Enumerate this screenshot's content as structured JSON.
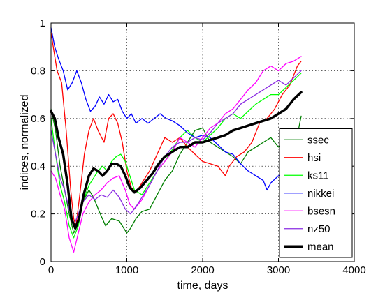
{
  "chart_data": {
    "type": "line",
    "xlabel": "time, days",
    "ylabel": "indices, normalized",
    "xlim": [
      0,
      4000
    ],
    "ylim": [
      0,
      1
    ],
    "x_ticks": [
      "0",
      "1000",
      "2000",
      "3000",
      "4000"
    ],
    "y_ticks": [
      "0",
      "0.2",
      "0.4",
      "0.6",
      "0.8",
      "1"
    ],
    "grid": true,
    "legend_position": "lower-right",
    "series": [
      {
        "name": "ssec",
        "color": "#007f00",
        "stroke_width": 1.3,
        "points": [
          [
            0,
            0.64
          ],
          [
            60,
            0.55
          ],
          [
            120,
            0.4
          ],
          [
            180,
            0.3
          ],
          [
            240,
            0.2
          ],
          [
            300,
            0.12
          ],
          [
            350,
            0.15
          ],
          [
            420,
            0.25
          ],
          [
            500,
            0.3
          ],
          [
            560,
            0.27
          ],
          [
            650,
            0.2
          ],
          [
            720,
            0.15
          ],
          [
            800,
            0.18
          ],
          [
            900,
            0.17
          ],
          [
            1000,
            0.12
          ],
          [
            1050,
            0.14
          ],
          [
            1120,
            0.18
          ],
          [
            1200,
            0.21
          ],
          [
            1300,
            0.22
          ],
          [
            1400,
            0.28
          ],
          [
            1500,
            0.34
          ],
          [
            1600,
            0.38
          ],
          [
            1700,
            0.45
          ],
          [
            1800,
            0.5
          ],
          [
            1900,
            0.55
          ],
          [
            2000,
            0.56
          ],
          [
            2100,
            0.5
          ],
          [
            2200,
            0.48
          ],
          [
            2300,
            0.46
          ],
          [
            2400,
            0.44
          ],
          [
            2500,
            0.41
          ],
          [
            2600,
            0.46
          ],
          [
            2700,
            0.48
          ],
          [
            2800,
            0.5
          ],
          [
            2900,
            0.52
          ],
          [
            3000,
            0.48
          ],
          [
            3100,
            0.52
          ],
          [
            3200,
            0.55
          ],
          [
            3250,
            0.53
          ],
          [
            3300,
            0.61
          ]
        ]
      },
      {
        "name": "hsi",
        "color": "#ff0000",
        "stroke_width": 1.3,
        "points": [
          [
            0,
            0.96
          ],
          [
            40,
            0.88
          ],
          [
            80,
            0.8
          ],
          [
            140,
            0.75
          ],
          [
            200,
            0.55
          ],
          [
            260,
            0.3
          ],
          [
            300,
            0.18
          ],
          [
            330,
            0.15
          ],
          [
            380,
            0.28
          ],
          [
            440,
            0.45
          ],
          [
            500,
            0.55
          ],
          [
            560,
            0.6
          ],
          [
            620,
            0.55
          ],
          [
            700,
            0.5
          ],
          [
            760,
            0.6
          ],
          [
            820,
            0.62
          ],
          [
            880,
            0.58
          ],
          [
            940,
            0.5
          ],
          [
            1000,
            0.38
          ],
          [
            1060,
            0.31
          ],
          [
            1120,
            0.29
          ],
          [
            1200,
            0.33
          ],
          [
            1300,
            0.38
          ],
          [
            1400,
            0.45
          ],
          [
            1500,
            0.52
          ],
          [
            1600,
            0.5
          ],
          [
            1700,
            0.52
          ],
          [
            1800,
            0.48
          ],
          [
            1900,
            0.45
          ],
          [
            2000,
            0.42
          ],
          [
            2100,
            0.41
          ],
          [
            2200,
            0.4
          ],
          [
            2300,
            0.36
          ],
          [
            2350,
            0.4
          ],
          [
            2450,
            0.44
          ],
          [
            2550,
            0.46
          ],
          [
            2650,
            0.5
          ],
          [
            2750,
            0.58
          ],
          [
            2850,
            0.6
          ],
          [
            2950,
            0.64
          ],
          [
            3050,
            0.7
          ],
          [
            3150,
            0.74
          ],
          [
            3250,
            0.82
          ],
          [
            3300,
            0.84
          ]
        ]
      },
      {
        "name": "ks11",
        "color": "#00ff00",
        "stroke_width": 1.3,
        "points": [
          [
            0,
            0.6
          ],
          [
            60,
            0.45
          ],
          [
            120,
            0.32
          ],
          [
            180,
            0.25
          ],
          [
            240,
            0.15
          ],
          [
            300,
            0.1
          ],
          [
            360,
            0.15
          ],
          [
            420,
            0.25
          ],
          [
            500,
            0.32
          ],
          [
            560,
            0.35
          ],
          [
            620,
            0.38
          ],
          [
            680,
            0.4
          ],
          [
            740,
            0.38
          ],
          [
            800,
            0.42
          ],
          [
            860,
            0.44
          ],
          [
            920,
            0.45
          ],
          [
            980,
            0.42
          ],
          [
            1040,
            0.36
          ],
          [
            1100,
            0.3
          ],
          [
            1200,
            0.28
          ],
          [
            1300,
            0.33
          ],
          [
            1400,
            0.38
          ],
          [
            1500,
            0.42
          ],
          [
            1600,
            0.47
          ],
          [
            1700,
            0.52
          ],
          [
            1800,
            0.55
          ],
          [
            1900,
            0.52
          ],
          [
            2000,
            0.5
          ],
          [
            2100,
            0.53
          ],
          [
            2200,
            0.56
          ],
          [
            2300,
            0.6
          ],
          [
            2400,
            0.62
          ],
          [
            2500,
            0.6
          ],
          [
            2600,
            0.63
          ],
          [
            2700,
            0.66
          ],
          [
            2800,
            0.68
          ],
          [
            2900,
            0.7
          ],
          [
            3000,
            0.7
          ],
          [
            3100,
            0.73
          ],
          [
            3200,
            0.76
          ],
          [
            3300,
            0.79
          ]
        ]
      },
      {
        "name": "nikkei",
        "color": "#0000ff",
        "stroke_width": 1.3,
        "points": [
          [
            0,
            0.98
          ],
          [
            50,
            0.9
          ],
          [
            100,
            0.85
          ],
          [
            160,
            0.8
          ],
          [
            220,
            0.72
          ],
          [
            280,
            0.75
          ],
          [
            340,
            0.8
          ],
          [
            400,
            0.75
          ],
          [
            460,
            0.68
          ],
          [
            520,
            0.63
          ],
          [
            580,
            0.65
          ],
          [
            640,
            0.69
          ],
          [
            700,
            0.66
          ],
          [
            760,
            0.7
          ],
          [
            820,
            0.67
          ],
          [
            880,
            0.68
          ],
          [
            940,
            0.63
          ],
          [
            1000,
            0.6
          ],
          [
            1060,
            0.62
          ],
          [
            1120,
            0.58
          ],
          [
            1200,
            0.6
          ],
          [
            1280,
            0.58
          ],
          [
            1360,
            0.6
          ],
          [
            1440,
            0.62
          ],
          [
            1520,
            0.6
          ],
          [
            1600,
            0.59
          ],
          [
            1700,
            0.57
          ],
          [
            1800,
            0.54
          ],
          [
            1900,
            0.52
          ],
          [
            2000,
            0.53
          ],
          [
            2100,
            0.52
          ],
          [
            2200,
            0.49
          ],
          [
            2300,
            0.46
          ],
          [
            2400,
            0.45
          ],
          [
            2500,
            0.41
          ],
          [
            2600,
            0.38
          ],
          [
            2700,
            0.36
          ],
          [
            2800,
            0.34
          ],
          [
            2850,
            0.3
          ],
          [
            2900,
            0.33
          ],
          [
            3000,
            0.36
          ],
          [
            3100,
            0.38
          ],
          [
            3200,
            0.41
          ],
          [
            3250,
            0.38
          ],
          [
            3300,
            0.37
          ]
        ]
      },
      {
        "name": "bsesn",
        "color": "#ff00ff",
        "stroke_width": 1.3,
        "points": [
          [
            0,
            0.38
          ],
          [
            60,
            0.35
          ],
          [
            120,
            0.28
          ],
          [
            180,
            0.22
          ],
          [
            240,
            0.1
          ],
          [
            300,
            0.04
          ],
          [
            360,
            0.12
          ],
          [
            420,
            0.2
          ],
          [
            500,
            0.25
          ],
          [
            580,
            0.28
          ],
          [
            660,
            0.3
          ],
          [
            740,
            0.33
          ],
          [
            820,
            0.35
          ],
          [
            900,
            0.36
          ],
          [
            980,
            0.3
          ],
          [
            1040,
            0.24
          ],
          [
            1100,
            0.22
          ],
          [
            1200,
            0.26
          ],
          [
            1300,
            0.32
          ],
          [
            1400,
            0.38
          ],
          [
            1500,
            0.42
          ],
          [
            1600,
            0.46
          ],
          [
            1700,
            0.52
          ],
          [
            1800,
            0.5
          ],
          [
            1900,
            0.48
          ],
          [
            2000,
            0.52
          ],
          [
            2100,
            0.56
          ],
          [
            2200,
            0.58
          ],
          [
            2300,
            0.62
          ],
          [
            2400,
            0.64
          ],
          [
            2500,
            0.68
          ],
          [
            2600,
            0.72
          ],
          [
            2700,
            0.75
          ],
          [
            2800,
            0.8
          ],
          [
            2900,
            0.82
          ],
          [
            3000,
            0.8
          ],
          [
            3100,
            0.83
          ],
          [
            3200,
            0.84
          ],
          [
            3300,
            0.86
          ]
        ]
      },
      {
        "name": "nz50",
        "color": "#8a2be2",
        "stroke_width": 1.3,
        "points": [
          [
            0,
            0.55
          ],
          [
            60,
            0.45
          ],
          [
            120,
            0.35
          ],
          [
            180,
            0.3
          ],
          [
            240,
            0.22
          ],
          [
            300,
            0.15
          ],
          [
            360,
            0.2
          ],
          [
            420,
            0.25
          ],
          [
            500,
            0.28
          ],
          [
            580,
            0.26
          ],
          [
            660,
            0.28
          ],
          [
            740,
            0.27
          ],
          [
            820,
            0.3
          ],
          [
            900,
            0.27
          ],
          [
            980,
            0.22
          ],
          [
            1050,
            0.2
          ],
          [
            1120,
            0.23
          ],
          [
            1200,
            0.27
          ],
          [
            1300,
            0.32
          ],
          [
            1400,
            0.38
          ],
          [
            1500,
            0.44
          ],
          [
            1600,
            0.48
          ],
          [
            1700,
            0.5
          ],
          [
            1800,
            0.5
          ],
          [
            1900,
            0.52
          ],
          [
            2000,
            0.51
          ],
          [
            2100,
            0.54
          ],
          [
            2200,
            0.58
          ],
          [
            2300,
            0.6
          ],
          [
            2400,
            0.62
          ],
          [
            2500,
            0.66
          ],
          [
            2600,
            0.68
          ],
          [
            2700,
            0.7
          ],
          [
            2800,
            0.72
          ],
          [
            2900,
            0.74
          ],
          [
            3000,
            0.76
          ],
          [
            3100,
            0.74
          ],
          [
            3200,
            0.77
          ],
          [
            3300,
            0.8
          ]
        ]
      },
      {
        "name": "mean",
        "color": "#000000",
        "stroke_width": 3.5,
        "points": [
          [
            0,
            0.63
          ],
          [
            50,
            0.6
          ],
          [
            100,
            0.52
          ],
          [
            160,
            0.45
          ],
          [
            220,
            0.32
          ],
          [
            270,
            0.18
          ],
          [
            320,
            0.14
          ],
          [
            370,
            0.18
          ],
          [
            430,
            0.28
          ],
          [
            500,
            0.36
          ],
          [
            560,
            0.39
          ],
          [
            620,
            0.38
          ],
          [
            680,
            0.36
          ],
          [
            740,
            0.38
          ],
          [
            800,
            0.41
          ],
          [
            860,
            0.41
          ],
          [
            920,
            0.4
          ],
          [
            980,
            0.36
          ],
          [
            1040,
            0.31
          ],
          [
            1100,
            0.29
          ],
          [
            1180,
            0.31
          ],
          [
            1260,
            0.34
          ],
          [
            1340,
            0.37
          ],
          [
            1420,
            0.41
          ],
          [
            1500,
            0.44
          ],
          [
            1600,
            0.46
          ],
          [
            1700,
            0.48
          ],
          [
            1800,
            0.48
          ],
          [
            1900,
            0.5
          ],
          [
            2000,
            0.5
          ],
          [
            2100,
            0.51
          ],
          [
            2200,
            0.52
          ],
          [
            2300,
            0.53
          ],
          [
            2400,
            0.55
          ],
          [
            2500,
            0.56
          ],
          [
            2600,
            0.57
          ],
          [
            2700,
            0.58
          ],
          [
            2800,
            0.59
          ],
          [
            2900,
            0.6
          ],
          [
            3000,
            0.62
          ],
          [
            3100,
            0.64
          ],
          [
            3200,
            0.68
          ],
          [
            3300,
            0.71
          ]
        ]
      }
    ]
  }
}
